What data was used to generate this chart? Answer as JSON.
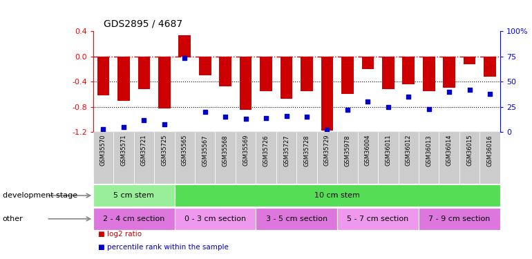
{
  "title": "GDS2895 / 4687",
  "samples": [
    "GSM35570",
    "GSM35571",
    "GSM35721",
    "GSM35725",
    "GSM35565",
    "GSM35567",
    "GSM35568",
    "GSM35569",
    "GSM35726",
    "GSM35727",
    "GSM35728",
    "GSM35729",
    "GSM35978",
    "GSM36004",
    "GSM36011",
    "GSM36012",
    "GSM36013",
    "GSM36014",
    "GSM36015",
    "GSM36016"
  ],
  "log2_ratio": [
    -0.62,
    -0.7,
    -0.52,
    -0.82,
    0.33,
    -0.3,
    -0.47,
    -0.85,
    -0.55,
    -0.67,
    -0.55,
    -1.18,
    -0.6,
    -0.2,
    -0.52,
    -0.44,
    -0.55,
    -0.5,
    -0.12,
    -0.32
  ],
  "percentile": [
    3,
    5,
    12,
    8,
    73,
    20,
    15,
    13,
    14,
    16,
    15,
    2,
    22,
    30,
    25,
    35,
    23,
    40,
    42,
    38
  ],
  "ylim_left": [
    -1.2,
    0.4
  ],
  "ylim_right": [
    0,
    100
  ],
  "right_ticks": [
    0,
    25,
    50,
    75,
    100
  ],
  "right_tick_labels": [
    "0",
    "25",
    "50",
    "75",
    "100%"
  ],
  "left_ticks": [
    -1.2,
    -0.8,
    -0.4,
    0.0,
    0.4
  ],
  "bar_color": "#cc0000",
  "scatter_color": "#0000cc",
  "dashed_color": "#cc0000",
  "xtick_bg": "#cccccc",
  "dev_stage_row": {
    "label": "development stage",
    "groups": [
      {
        "text": "5 cm stem",
        "start": 0,
        "end": 4,
        "color": "#99ee99"
      },
      {
        "text": "10 cm stem",
        "start": 4,
        "end": 20,
        "color": "#55dd55"
      }
    ]
  },
  "other_row": {
    "label": "other",
    "groups": [
      {
        "text": "2 - 4 cm section",
        "start": 0,
        "end": 4,
        "color": "#dd77dd"
      },
      {
        "text": "0 - 3 cm section",
        "start": 4,
        "end": 8,
        "color": "#ee99ee"
      },
      {
        "text": "3 - 5 cm section",
        "start": 8,
        "end": 12,
        "color": "#dd77dd"
      },
      {
        "text": "5 - 7 cm section",
        "start": 12,
        "end": 16,
        "color": "#ee99ee"
      },
      {
        "text": "7 - 9 cm section",
        "start": 16,
        "end": 20,
        "color": "#dd77dd"
      }
    ]
  },
  "legend_items": [
    {
      "label": "log2 ratio",
      "color": "#cc0000"
    },
    {
      "label": "percentile rank within the sample",
      "color": "#0000cc"
    }
  ],
  "bg_color": "#ffffff"
}
